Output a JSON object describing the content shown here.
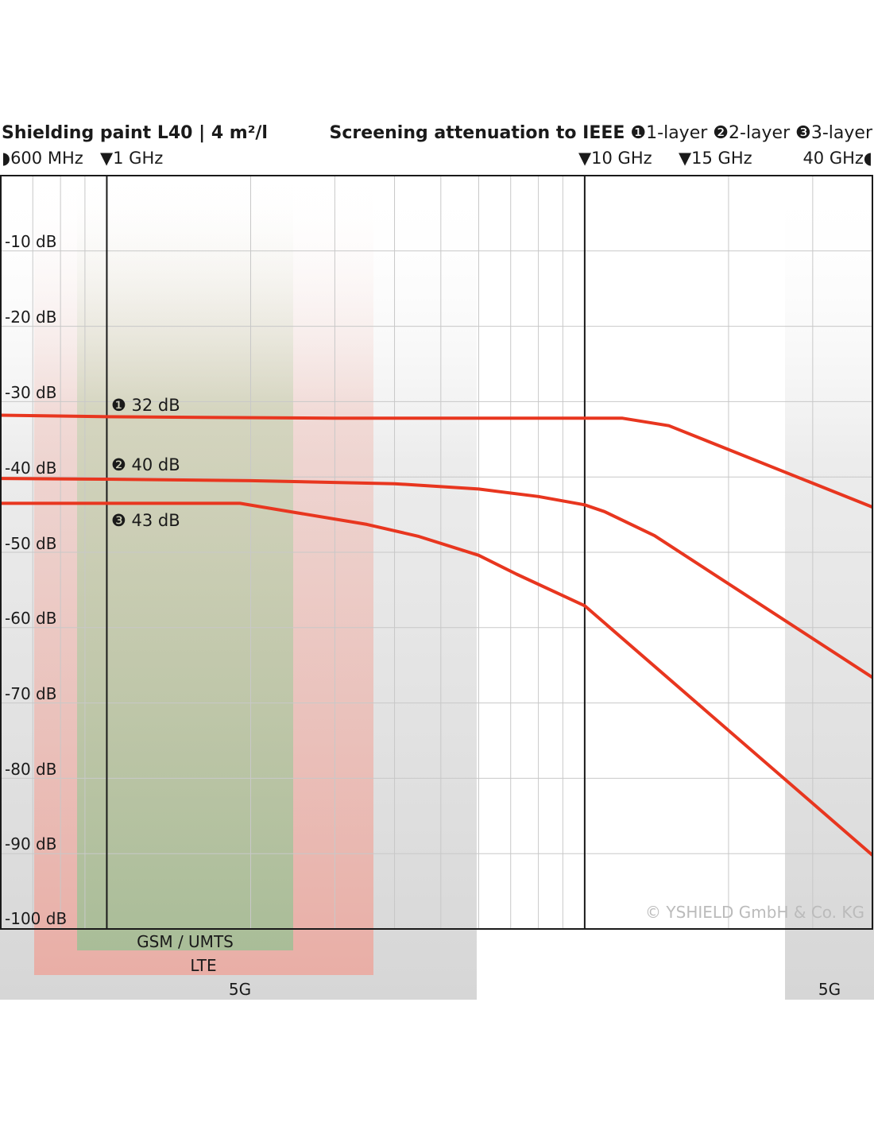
{
  "header": {
    "title_left": "Shielding paint L40 | 4 m²/l",
    "title_right_bold": "Screening attenuation to IEEE",
    "legend": [
      "❶1-layer",
      "❷2-layer",
      "❸3-layer"
    ]
  },
  "frequency_markers": [
    {
      "label": "◗600 MHz"
    },
    {
      "label": "▼1 GHz"
    },
    {
      "label": "▼10 GHz"
    },
    {
      "label": "▼15 GHz"
    },
    {
      "label": "40 GHz◖"
    }
  ],
  "bands": [
    {
      "name": "GSM / UMTS"
    },
    {
      "name": "LTE"
    },
    {
      "name": "5G"
    },
    {
      "name": "5G"
    }
  ],
  "annotations": [
    {
      "label": "❶ 32 dB"
    },
    {
      "label": "❷ 40 dB"
    },
    {
      "label": "❸ 43 dB"
    }
  ],
  "copyright": "© YSHIELD GmbH & Co. KG",
  "colors": {
    "line": "#e8361f",
    "band_gsm": "#a8bd96",
    "band_lte": "#eeb9b1",
    "band_5g": "#dcdcdc",
    "grid": "#cccccc"
  },
  "chart_data": {
    "type": "line",
    "title": "Shielding paint L40 | 4 m²/l",
    "x_scale": "log",
    "xlim": [
      0.6,
      40
    ],
    "ylim": [
      -100,
      0
    ],
    "y_ticks": [
      -10,
      -20,
      -30,
      -40,
      -50,
      -60,
      -70,
      -80,
      -90,
      -100
    ],
    "y_tick_labels": [
      "-10 dB",
      "-20 dB",
      "-30 dB",
      "-40 dB",
      "-50 dB",
      "-60 dB",
      "-70 dB",
      "-80 dB",
      "-90 dB",
      "-100 dB"
    ],
    "grid": true,
    "x_units": "GHz",
    "series": [
      {
        "name": "1-layer",
        "x": [
          0.6,
          1,
          3,
          10,
          12,
          15,
          40
        ],
        "y": [
          -31.8,
          -32,
          -32.2,
          -32.2,
          -32.2,
          -33.2,
          -44
        ]
      },
      {
        "name": "2-layer",
        "x": [
          0.6,
          1,
          2,
          4,
          6,
          8,
          10,
          11,
          14,
          40
        ],
        "y": [
          -40.2,
          -40.3,
          -40.5,
          -40.9,
          -41.6,
          -42.6,
          -43.7,
          -44.6,
          -47.8,
          -66.6
        ]
      },
      {
        "name": "3-layer",
        "x": [
          0.6,
          1,
          1.9,
          3.5,
          4.5,
          6,
          7.2,
          10,
          40
        ],
        "y": [
          -43.5,
          -43.5,
          -43.5,
          -46.3,
          -47.9,
          -50.4,
          -52.9,
          -57.1,
          -90.2
        ]
      }
    ]
  }
}
